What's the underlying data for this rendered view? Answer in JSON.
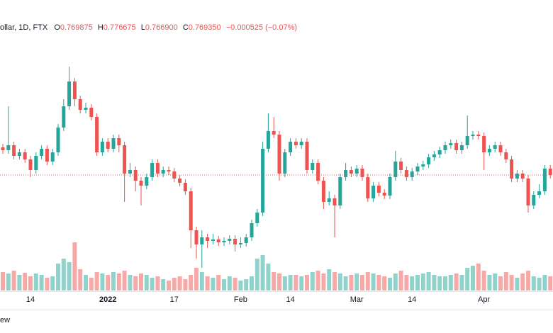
{
  "chart_data": {
    "type": "candlestick",
    "header": {
      "symbol": "ollar, 1D, FTX",
      "open_label": "O",
      "open_value": "0.769875",
      "high_label": "H",
      "high_value": "0.776675",
      "low_label": "L",
      "low_value": "0.766900",
      "close_label": "C",
      "close_value": "0.769350",
      "change": "−0.000525 (−0.07%)"
    },
    "footer": "ew",
    "categories": [
      null,
      null,
      null,
      null,
      null,
      "14",
      null,
      null,
      null,
      null,
      null,
      null,
      null,
      null,
      null,
      null,
      null,
      null,
      null,
      "2022",
      null,
      null,
      null,
      null,
      null,
      null,
      null,
      null,
      null,
      null,
      null,
      "17",
      null,
      null,
      null,
      null,
      null,
      null,
      null,
      null,
      null,
      null,
      null,
      "Feb",
      null,
      null,
      null,
      null,
      null,
      null,
      null,
      null,
      "14",
      null,
      null,
      null,
      null,
      null,
      null,
      null,
      null,
      null,
      null,
      null,
      "Mar",
      null,
      null,
      null,
      null,
      null,
      null,
      null,
      null,
      null,
      "14",
      null,
      null,
      null,
      null,
      null,
      null,
      null,
      null,
      null,
      null,
      null,
      null,
      "Apr",
      null,
      null,
      null,
      null,
      null,
      null,
      null,
      null,
      null,
      null,
      null,
      null
    ],
    "open": [
      0.7772,
      0.7764,
      0.7778,
      0.7748,
      0.7758,
      0.7738,
      0.7708,
      0.7748,
      0.7768,
      0.7732,
      0.7758,
      0.7828,
      0.7888,
      0.7958,
      0.7908,
      0.7878,
      0.7884,
      0.7858,
      0.7758,
      0.7788,
      0.7768,
      0.7798,
      0.7778,
      0.7698,
      0.7708,
      0.7678,
      0.7664,
      0.7688,
      0.7728,
      0.7698,
      0.7708,
      0.7704,
      0.7684,
      0.7672,
      0.7648,
      0.7538,
      0.7498,
      0.7518,
      0.7508,
      0.7512,
      0.7504,
      0.7508,
      0.7514,
      0.7498,
      0.7502,
      0.7518,
      0.7558,
      0.7588,
      0.7768,
      0.7818,
      0.7808,
      0.7698,
      0.7758,
      0.7788,
      0.7778,
      0.7788,
      0.7708,
      0.7728,
      0.7678,
      0.7618,
      0.7628,
      0.7608,
      0.7688,
      0.7708,
      0.7698,
      0.7712,
      0.7688,
      0.7628,
      0.7664,
      0.7644,
      0.7636,
      0.7688,
      0.7732,
      0.7708,
      0.7688,
      0.7704,
      0.7718,
      0.7724,
      0.7744,
      0.7752,
      0.7764,
      0.7778,
      0.7784,
      0.7764,
      0.7778,
      0.7804,
      0.7808,
      0.7804,
      0.7758,
      0.7768,
      0.7778,
      0.7758,
      0.7738,
      0.7684,
      0.7698,
      0.7684,
      0.7608,
      0.7638,
      0.7648,
      0.7712
    ],
    "high": [
      0.7782,
      0.7888,
      0.7788,
      0.7768,
      0.7768,
      0.7748,
      0.7758,
      0.7778,
      0.7778,
      0.7768,
      0.7838,
      0.7908,
      0.8,
      0.7968,
      0.7918,
      0.7898,
      0.7894,
      0.7868,
      0.7798,
      0.7798,
      0.7808,
      0.7808,
      0.7788,
      0.7728,
      0.7718,
      0.7688,
      0.7698,
      0.7738,
      0.7738,
      0.7718,
      0.7718,
      0.7714,
      0.7694,
      0.7682,
      0.7658,
      0.7548,
      0.7538,
      0.7528,
      0.7528,
      0.7522,
      0.7518,
      0.7524,
      0.7524,
      0.7518,
      0.7528,
      0.7568,
      0.7598,
      0.7788,
      0.7868,
      0.7858,
      0.7818,
      0.7768,
      0.7798,
      0.7798,
      0.7798,
      0.7798,
      0.7738,
      0.7738,
      0.7688,
      0.7648,
      0.7638,
      0.7698,
      0.7728,
      0.7718,
      0.7722,
      0.7722,
      0.7698,
      0.7674,
      0.7674,
      0.7654,
      0.7698,
      0.7762,
      0.7742,
      0.7718,
      0.7714,
      0.7728,
      0.7734,
      0.7754,
      0.7762,
      0.7774,
      0.7788,
      0.7794,
      0.7794,
      0.7788,
      0.7862,
      0.7818,
      0.7818,
      0.7814,
      0.7778,
      0.7788,
      0.7788,
      0.7768,
      0.7748,
      0.7708,
      0.7708,
      0.7694,
      0.7648,
      0.7668,
      0.7722,
      0.7722
    ],
    "low": [
      0.7754,
      0.7754,
      0.7738,
      0.7738,
      0.7728,
      0.7688,
      0.7698,
      0.7738,
      0.7722,
      0.7722,
      0.7748,
      0.7818,
      0.7878,
      0.7888,
      0.7868,
      0.7868,
      0.7848,
      0.7748,
      0.7748,
      0.7758,
      0.7758,
      0.7758,
      0.7618,
      0.7688,
      0.7648,
      0.7608,
      0.7654,
      0.7678,
      0.7688,
      0.7688,
      0.7694,
      0.7674,
      0.7662,
      0.7638,
      0.7488,
      0.7458,
      0.7432,
      0.7488,
      0.7498,
      0.7494,
      0.7494,
      0.7498,
      0.7478,
      0.7488,
      0.7492,
      0.7508,
      0.7548,
      0.7578,
      0.7758,
      0.7798,
      0.7678,
      0.7688,
      0.7748,
      0.7768,
      0.7768,
      0.7698,
      0.7698,
      0.7668,
      0.7598,
      0.7608,
      0.7518,
      0.7598,
      0.7678,
      0.7688,
      0.7688,
      0.7678,
      0.7618,
      0.7618,
      0.7634,
      0.7626,
      0.7626,
      0.7678,
      0.7698,
      0.7678,
      0.7678,
      0.7694,
      0.7708,
      0.7714,
      0.7734,
      0.7742,
      0.7754,
      0.7768,
      0.7754,
      0.7754,
      0.7768,
      0.7794,
      0.7794,
      0.7708,
      0.7748,
      0.7758,
      0.7748,
      0.7728,
      0.7674,
      0.7674,
      0.7674,
      0.7588,
      0.7598,
      0.7628,
      0.7638,
      0.7684
    ],
    "close": [
      0.7764,
      0.7778,
      0.7748,
      0.7758,
      0.7738,
      0.7708,
      0.7748,
      0.7768,
      0.7732,
      0.7758,
      0.7828,
      0.7888,
      0.7958,
      0.7908,
      0.7878,
      0.7884,
      0.7858,
      0.7758,
      0.7788,
      0.7768,
      0.7798,
      0.7778,
      0.7698,
      0.7708,
      0.7678,
      0.7664,
      0.7688,
      0.7728,
      0.7698,
      0.7708,
      0.7704,
      0.7684,
      0.7672,
      0.7648,
      0.7538,
      0.7498,
      0.7518,
      0.7508,
      0.7512,
      0.7504,
      0.7508,
      0.7514,
      0.7498,
      0.7502,
      0.7518,
      0.7558,
      0.7588,
      0.7768,
      0.7818,
      0.7808,
      0.7698,
      0.7758,
      0.7788,
      0.7778,
      0.7788,
      0.7708,
      0.7728,
      0.7678,
      0.7618,
      0.7628,
      0.7608,
      0.7688,
      0.7708,
      0.7698,
      0.7712,
      0.7688,
      0.7628,
      0.7664,
      0.7644,
      0.7636,
      0.7688,
      0.7732,
      0.7708,
      0.7688,
      0.7704,
      0.7718,
      0.7724,
      0.7744,
      0.7752,
      0.7764,
      0.7778,
      0.7784,
      0.7764,
      0.7778,
      0.7804,
      0.7808,
      0.7804,
      0.7758,
      0.7768,
      0.7778,
      0.7758,
      0.7738,
      0.7684,
      0.7698,
      0.7684,
      0.7608,
      0.7638,
      0.7648,
      0.7712,
      0.7694
    ],
    "volume": [
      26,
      24,
      28,
      22,
      25,
      20,
      24,
      22,
      18,
      20,
      38,
      45,
      40,
      68,
      30,
      22,
      18,
      26,
      24,
      22,
      26,
      24,
      28,
      22,
      20,
      24,
      22,
      18,
      20,
      16,
      14,
      18,
      20,
      16,
      22,
      32,
      26,
      20,
      18,
      22,
      16,
      20,
      18,
      14,
      16,
      20,
      45,
      50,
      38,
      26,
      24,
      20,
      22,
      22,
      20,
      22,
      26,
      28,
      24,
      30,
      26,
      24,
      20,
      22,
      24,
      22,
      26,
      24,
      22,
      20,
      18,
      24,
      28,
      22,
      20,
      22,
      24,
      26,
      22,
      20,
      20,
      22,
      24,
      22,
      32,
      35,
      38,
      28,
      22,
      24,
      20,
      26,
      22,
      18,
      24,
      28,
      20,
      18,
      22,
      20
    ],
    "ylim": [
      0.7368,
      0.8148
    ],
    "volume_ylim": [
      0,
      100
    ],
    "up_color": "#26a69a",
    "down_color": "#ef5350"
  }
}
